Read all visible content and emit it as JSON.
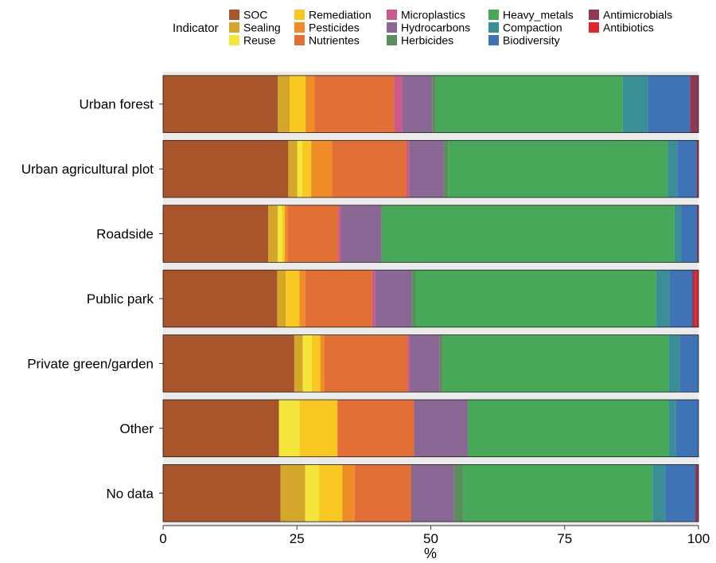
{
  "chart_data": {
    "type": "bar",
    "orientation": "horizontal",
    "stacked": true,
    "normalized_percent": true,
    "title": "",
    "xlabel": "%",
    "ylabel": "",
    "xlim": [
      0,
      100
    ],
    "xticks": [
      "0",
      "25",
      "50",
      "75",
      "100"
    ],
    "legend_title": "Indicator",
    "legend_position": "top",
    "categories": [
      "Urban forest",
      "Urban agricultural plot",
      "Roadside",
      "Public park",
      "Private green/garden",
      "Other",
      "No data"
    ],
    "series": [
      {
        "name": "SOC",
        "color": "#A9552B",
        "values": [
          21.5,
          23.5,
          19.7,
          21.5,
          24.7,
          21.8,
          22.0
        ]
      },
      {
        "name": "Sealing",
        "color": "#D4A62A",
        "values": [
          2.2,
          1.7,
          1.8,
          1.6,
          1.6,
          0.0,
          4.6
        ]
      },
      {
        "name": "Reuse",
        "color": "#F5E63B",
        "values": [
          0.0,
          0.9,
          0.8,
          0.0,
          1.7,
          3.9,
          2.6
        ]
      },
      {
        "name": "Remediation",
        "color": "#F9C823",
        "values": [
          3.0,
          1.7,
          0.5,
          2.6,
          1.6,
          7.1,
          4.4
        ]
      },
      {
        "name": "Pesticides",
        "color": "#F08C28",
        "values": [
          1.7,
          3.9,
          0.5,
          1.1,
          0.8,
          0.0,
          2.3
        ]
      },
      {
        "name": "Nutrientes",
        "color": "#E26F35",
        "values": [
          14.9,
          14.0,
          9.5,
          12.6,
          15.6,
          14.4,
          10.6
        ]
      },
      {
        "name": "Microplastics",
        "color": "#C85B8C",
        "values": [
          1.5,
          0.5,
          0.5,
          0.6,
          0.5,
          0.0,
          0.0
        ]
      },
      {
        "name": "Hydrocarbons",
        "color": "#8A6794",
        "values": [
          5.6,
          6.5,
          7.6,
          6.8,
          5.6,
          10.1,
          8.0
        ]
      },
      {
        "name": "Herbicides",
        "color": "#5C8E5D",
        "values": [
          0.7,
          0.8,
          0.0,
          0.8,
          0.6,
          0.0,
          1.7
        ]
      },
      {
        "name": "Heavy_metals",
        "color": "#48A85A",
        "values": [
          35.0,
          41.2,
          54.9,
          45.3,
          42.5,
          37.8,
          35.5
        ]
      },
      {
        "name": "Compaction",
        "color": "#3A8F96",
        "values": [
          4.7,
          1.8,
          1.3,
          2.5,
          2.1,
          1.3,
          2.4
        ]
      },
      {
        "name": "Biodiversity",
        "color": "#3E73B5",
        "values": [
          7.9,
          3.6,
          2.9,
          4.3,
          3.5,
          4.3,
          5.6
        ]
      },
      {
        "name": "Antimicrobials",
        "color": "#8E3A55",
        "values": [
          1.6,
          0.4,
          0.3,
          0.5,
          0.0,
          0.0,
          0.6
        ]
      },
      {
        "name": "Antibiotics",
        "color": "#E2262B",
        "values": [
          0.0,
          0.0,
          0.0,
          0.7,
          0.0,
          0.0,
          0.0
        ]
      }
    ]
  }
}
